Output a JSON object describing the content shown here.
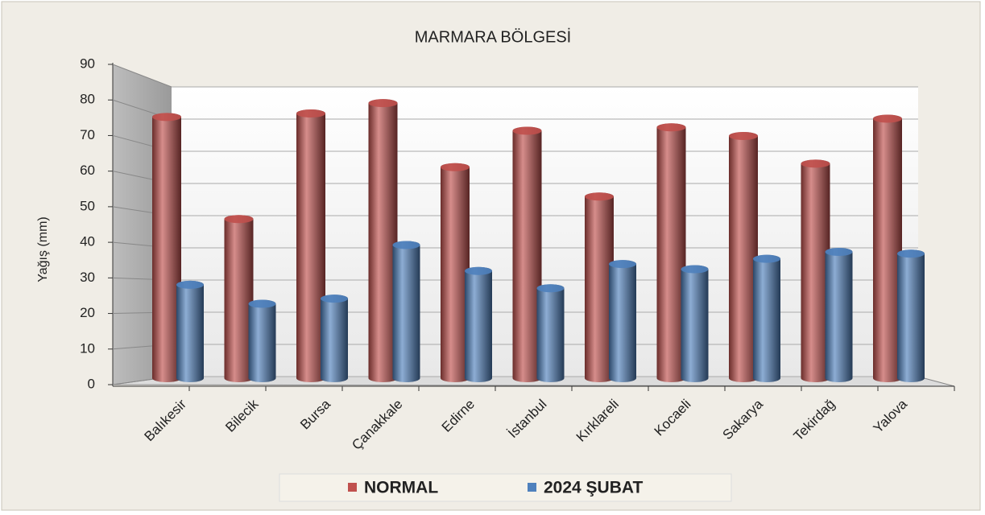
{
  "chart_data": {
    "type": "bar3d",
    "title": "MARMARA BÖLGESİ",
    "y_label": "Yağış (mm)",
    "categories": [
      "Balıkesir",
      "Bilecik",
      "Bursa",
      "Çanakkale",
      "Edirne",
      "İstanbul",
      "Kırklareli",
      "Kocaeli",
      "Sakarya",
      "Tekirdağ",
      "Yalova"
    ],
    "series": [
      {
        "name": "NORMAL",
        "color": "#c0504d",
        "values": [
          75.5,
          46,
          76.5,
          79.5,
          61,
          71.5,
          52.5,
          72.5,
          70,
          62,
          75
        ]
      },
      {
        "name": "2024 ŞUBAT",
        "color": "#4f81bd",
        "values": [
          27,
          21.5,
          23,
          38.5,
          31,
          26,
          33,
          31.5,
          34.5,
          36.5,
          36
        ]
      }
    ],
    "ylim": [
      0,
      90
    ],
    "yticks": [
      0,
      10,
      20,
      30,
      40,
      50,
      60,
      70,
      80,
      90
    ],
    "grid": true,
    "legend": "bottom"
  }
}
